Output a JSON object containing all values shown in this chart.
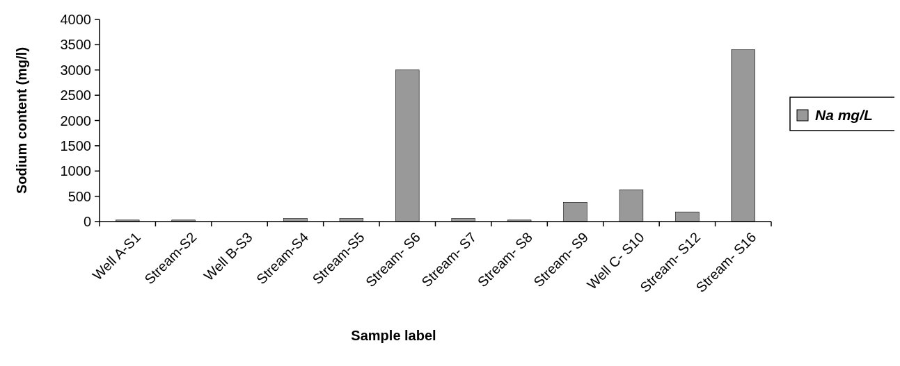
{
  "chart_data": {
    "type": "bar",
    "xlabel": "Sample label",
    "ylabel": "Sodium content (mg/l)",
    "categories": [
      "Well A-S1",
      "Stream-S2",
      "Well B-S3",
      "Stream-S4",
      "Stream-S5",
      "Stream- S6",
      "Stream- S7",
      "Stream- S8",
      "Stream- S9",
      "Well C- S10",
      "Stream- S12",
      "Stream- S16"
    ],
    "series": [
      {
        "name": "Na mg/L",
        "color": "#999999",
        "values": [
          30,
          30,
          0,
          60,
          60,
          3000,
          60,
          30,
          380,
          630,
          190,
          3400
        ]
      }
    ],
    "ylim": [
      0,
      4000
    ],
    "yticks": [
      0,
      500,
      1000,
      1500,
      2000,
      2500,
      3000,
      3500,
      4000
    ],
    "legend": "right",
    "grid": false
  }
}
